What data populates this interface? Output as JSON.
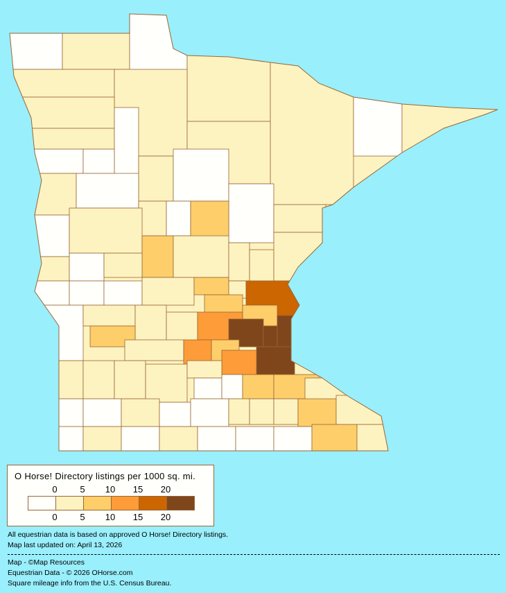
{
  "colors": {
    "background": "#99effc",
    "border": "#996633",
    "classes": [
      "#fffffc",
      "#fdf3c0",
      "#fdce6a",
      "#fd9c38",
      "#cc6600",
      "#7f461c"
    ]
  },
  "map": {
    "county_classes": [
      0,
      1,
      0,
      1,
      1,
      0,
      1,
      1,
      1,
      1,
      1,
      0,
      1,
      0,
      0,
      1,
      0,
      0,
      1,
      1,
      0,
      1,
      0,
      2,
      0,
      1,
      2,
      1,
      1,
      1,
      1,
      1,
      0,
      1,
      0,
      0,
      0,
      1,
      2,
      1,
      4,
      0,
      1,
      1,
      1,
      2,
      3,
      2,
      5,
      5,
      5,
      5,
      2,
      1,
      3,
      2,
      3,
      1,
      1,
      1,
      1,
      1,
      0,
      0,
      2,
      2,
      1,
      0,
      0,
      1,
      0,
      0,
      1,
      1,
      1,
      2,
      1,
      0,
      1,
      0,
      1,
      0,
      0,
      0,
      2,
      1
    ]
  },
  "legend": {
    "title": "O Horse! Directory listings per 1000 sq. mi.",
    "top_ticks": [
      "0",
      "5",
      "10",
      "15",
      "20"
    ],
    "bottom_ticks": [
      "0",
      "5",
      "10",
      "15",
      "20"
    ]
  },
  "notes": {
    "line1": "All equestrian data is based on approved O Horse! Directory listings.",
    "line2": "Map last updated on: April 13, 2026",
    "credit_map": "Map - ©Map Resources",
    "credit_data": "Equestrian Data - © 2026 OHorse.com",
    "credit_census": "Square mileage info from the U.S. Census Bureau."
  }
}
